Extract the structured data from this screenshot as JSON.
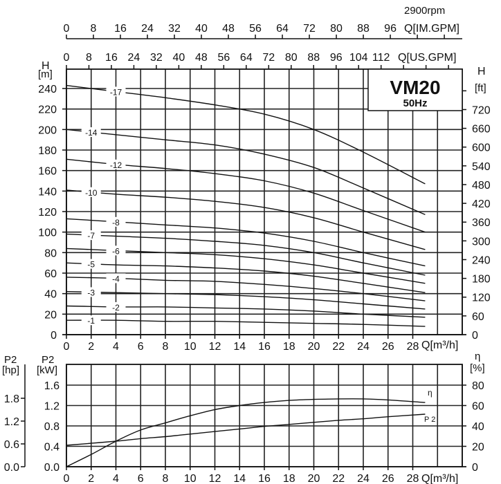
{
  "chart_data": [
    {
      "type": "line",
      "title": "VM20",
      "subtitle": "50Hz",
      "speed_label": "2900rpm",
      "xlabel": "Q[m³/h]",
      "ylabel": "H [m]",
      "ylabel_right": "H [ft]",
      "x_secondary_axes": [
        {
          "label": "Q[IM.GPM]",
          "ticks": [
            0,
            8,
            16,
            24,
            32,
            40,
            48,
            56,
            64,
            72,
            80,
            88,
            96
          ]
        },
        {
          "label": "Q[US.GPM]",
          "ticks": [
            0,
            8,
            16,
            24,
            32,
            40,
            48,
            56,
            64,
            72,
            80,
            88,
            96,
            104,
            112
          ]
        }
      ],
      "xticks": [
        0,
        2,
        4,
        6,
        8,
        10,
        12,
        14,
        16,
        18,
        20,
        22,
        24,
        26,
        28
      ],
      "yticks": [
        0,
        20,
        40,
        60,
        80,
        100,
        120,
        140,
        160,
        180,
        200,
        220,
        240
      ],
      "yticks_right": [
        0,
        60,
        120,
        180,
        240,
        300,
        360,
        420,
        480,
        540,
        600,
        660,
        720
      ],
      "xlim": [
        0,
        32
      ],
      "ylim": [
        0,
        260
      ],
      "grid": true,
      "x": [
        0,
        4,
        8,
        12,
        16,
        20,
        24,
        29
      ],
      "series": [
        {
          "name": "-17",
          "values": [
            243,
            237,
            231,
            224,
            215,
            200,
            178,
            147
          ]
        },
        {
          "name": "-14",
          "values": [
            200,
            195,
            190,
            185,
            176,
            163,
            143,
            117
          ]
        },
        {
          "name": "-12",
          "values": [
            171,
            166,
            162,
            157,
            150,
            138,
            121,
            100
          ]
        },
        {
          "name": "-10",
          "values": [
            141,
            137,
            134,
            130,
            124,
            114,
            100,
            83
          ]
        },
        {
          "name": "-8",
          "values": [
            113,
            110,
            107,
            104,
            99,
            91,
            80,
            67
          ]
        },
        {
          "name": "-7",
          "values": [
            98,
            96,
            94,
            91,
            87,
            80,
            70,
            58
          ]
        },
        {
          "name": "-6",
          "values": [
            84,
            82,
            80,
            78,
            74,
            68,
            60,
            50
          ]
        },
        {
          "name": "-5",
          "values": [
            70,
            68,
            67,
            65,
            62,
            57,
            50,
            41
          ]
        },
        {
          "name": "-4",
          "values": [
            56,
            55,
            53,
            52,
            49,
            45,
            40,
            33
          ]
        },
        {
          "name": "-3",
          "values": [
            42,
            41,
            40,
            39,
            37,
            34,
            30,
            25
          ]
        },
        {
          "name": "-2",
          "values": [
            28,
            27,
            27,
            26,
            25,
            23,
            20,
            17
          ]
        },
        {
          "name": "-1",
          "values": [
            14,
            14,
            13,
            13,
            12,
            11,
            10,
            8
          ]
        }
      ]
    },
    {
      "type": "line",
      "xlabel": "Q[m³/h]",
      "ylabel": "P2 [kW]",
      "ylabel_left_outer": "P2 [hp]",
      "ylabel_right": "η [%]",
      "xticks": [
        0,
        2,
        4,
        6,
        8,
        10,
        12,
        14,
        16,
        18,
        20,
        22,
        24,
        26,
        28
      ],
      "yticks": [
        0.0,
        0.4,
        0.8,
        1.2,
        1.6
      ],
      "yticks_hp": [
        0.0,
        0.6,
        1.2,
        1.8
      ],
      "yticks_right": [
        0,
        20,
        40,
        60,
        80
      ],
      "xlim": [
        0,
        32
      ],
      "ylim": [
        0,
        2.0
      ],
      "grid": true,
      "x": [
        0,
        2,
        4,
        6,
        8,
        10,
        12,
        14,
        16,
        18,
        20,
        22,
        24,
        26,
        29
      ],
      "series": [
        {
          "name": "η",
          "unit": "%",
          "values": [
            0,
            12,
            25,
            36,
            43,
            50,
            56,
            60,
            63,
            65,
            66,
            66.5,
            66.5,
            65.5,
            63
          ]
        },
        {
          "name": "P2",
          "unit": "kW",
          "values": [
            0.42,
            0.46,
            0.5,
            0.55,
            0.59,
            0.64,
            0.69,
            0.74,
            0.79,
            0.83,
            0.87,
            0.91,
            0.94,
            0.98,
            1.03
          ]
        }
      ]
    }
  ],
  "labels": {
    "speed": "2900rpm",
    "model": "VM20",
    "freq": "50Hz",
    "im_gpm_axis": "Q[IM.GPM]",
    "us_gpm_axis": "Q[US.GPM]",
    "h_m_title": "H",
    "h_m_unit": "[m]",
    "h_ft_title": "H",
    "h_ft_unit": "[ft]",
    "q_axis": "Q[m³/h]",
    "p2_hp_title": "P2",
    "p2_hp_unit": "[hp]",
    "p2_kw_title": "P2",
    "p2_kw_unit": "[kW]",
    "eta_title": "η",
    "eta_unit": "[%]",
    "eta_curve": "η",
    "p2_curve": "P 2"
  }
}
